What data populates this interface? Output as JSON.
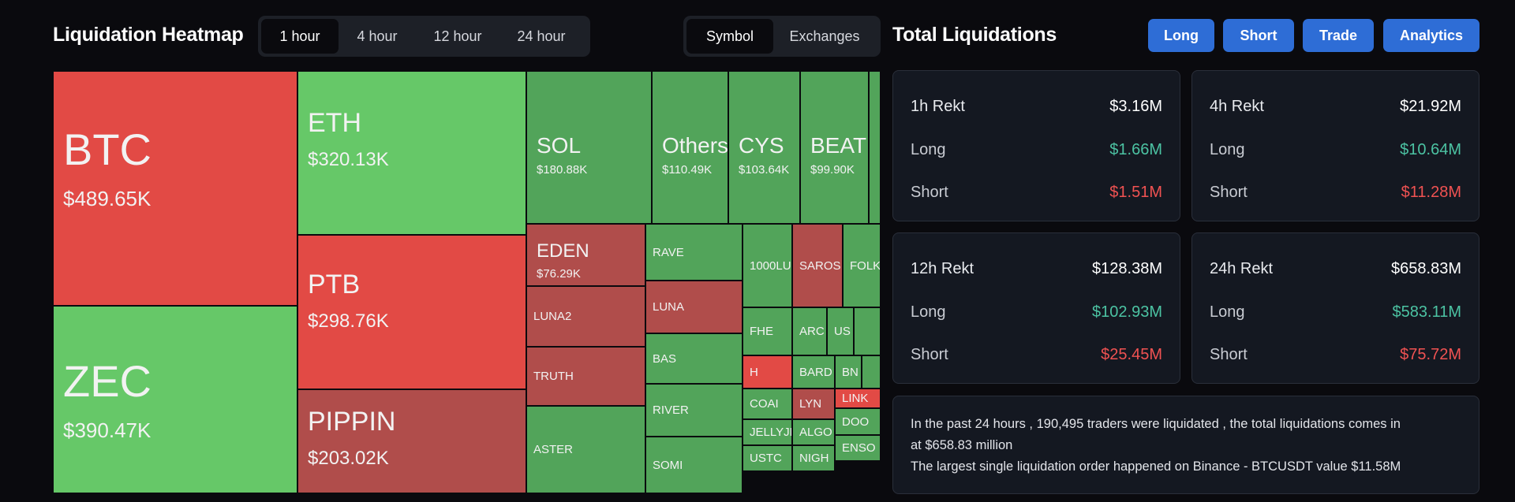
{
  "heatmap": {
    "title": "Liquidation Heatmap",
    "timeframes": [
      "1 hour",
      "4 hour",
      "12 hour",
      "24 hour"
    ],
    "active_timeframe": "1 hour",
    "view_modes": [
      "Symbol",
      "Exchanges"
    ],
    "active_view": "Symbol",
    "colors": {
      "green": "#66c868",
      "mid_green": "#52a45a",
      "red": "#e24a45",
      "dark_red": "#b04d4b",
      "background": "#0a0a0e"
    },
    "tiles": [
      {
        "sym": "BTC",
        "value": "$489.65K",
        "color": "#e24a45",
        "size": "xl"
      },
      {
        "sym": "ZEC",
        "value": "$390.47K",
        "color": "#66c868",
        "size": "xl"
      },
      {
        "sym": "ETH",
        "value": "$320.13K",
        "color": "#66c868",
        "size": "lg"
      },
      {
        "sym": "PTB",
        "value": "$298.76K",
        "color": "#e24a45",
        "size": "lg"
      },
      {
        "sym": "PIPPIN",
        "value": "$203.02K",
        "color": "#b04d4b",
        "size": "lg"
      },
      {
        "sym": "SOL",
        "value": "$180.88K",
        "color": "#52a45a",
        "size": "md"
      },
      {
        "sym": "Others",
        "value": "$110.49K",
        "color": "#52a45a",
        "size": "md"
      },
      {
        "sym": "CYS",
        "value": "$103.64K",
        "color": "#52a45a",
        "size": "md"
      },
      {
        "sym": "BEAT",
        "value": "$99.90K",
        "color": "#52a45a",
        "size": "md"
      },
      {
        "sym": "",
        "value": "",
        "color": "#52a45a",
        "size": "sm"
      },
      {
        "sym": "EDEN",
        "value": "$76.29K",
        "color": "#b04d4b",
        "size": "sm"
      },
      {
        "sym": "LUNA2",
        "value": "",
        "color": "#b04d4b",
        "size": "xs"
      },
      {
        "sym": "TRUTH",
        "value": "",
        "color": "#b04d4b",
        "size": "xs"
      },
      {
        "sym": "ASTER",
        "value": "",
        "color": "#52a45a",
        "size": "xs"
      },
      {
        "sym": "RAVE",
        "value": "",
        "color": "#52a45a",
        "size": "xs"
      },
      {
        "sym": "LUNA",
        "value": "",
        "color": "#b04d4b",
        "size": "xs"
      },
      {
        "sym": "BAS",
        "value": "",
        "color": "#52a45a",
        "size": "xs"
      },
      {
        "sym": "RIVER",
        "value": "",
        "color": "#52a45a",
        "size": "xs"
      },
      {
        "sym": "SOMI",
        "value": "",
        "color": "#52a45a",
        "size": "xs"
      },
      {
        "sym": "1000LU",
        "value": "",
        "color": "#52a45a",
        "size": "xs"
      },
      {
        "sym": "SAROS",
        "value": "",
        "color": "#b04d4b",
        "size": "xs"
      },
      {
        "sym": "FOLK",
        "value": "",
        "color": "#52a45a",
        "size": "xs"
      },
      {
        "sym": "FHE",
        "value": "",
        "color": "#52a45a",
        "size": "xs"
      },
      {
        "sym": "ARC",
        "value": "",
        "color": "#52a45a",
        "size": "xs"
      },
      {
        "sym": "US",
        "value": "",
        "color": "#52a45a",
        "size": "xs"
      },
      {
        "sym": "",
        "value": "",
        "color": "#52a45a",
        "size": "xs"
      },
      {
        "sym": "H",
        "value": "",
        "color": "#e24a45",
        "size": "xs"
      },
      {
        "sym": "BARD",
        "value": "",
        "color": "#52a45a",
        "size": "xs"
      },
      {
        "sym": "BN",
        "value": "",
        "color": "#52a45a",
        "size": "xs"
      },
      {
        "sym": "",
        "value": "",
        "color": "#52a45a",
        "size": "xs"
      },
      {
        "sym": "COAI",
        "value": "",
        "color": "#52a45a",
        "size": "xs"
      },
      {
        "sym": "LYN",
        "value": "",
        "color": "#b04d4b",
        "size": "xs"
      },
      {
        "sym": "LINK",
        "value": "",
        "color": "#e24a45",
        "size": "xs"
      },
      {
        "sym": "JELLYJE",
        "value": "",
        "color": "#52a45a",
        "size": "xs"
      },
      {
        "sym": "ALGO",
        "value": "",
        "color": "#52a45a",
        "size": "xs"
      },
      {
        "sym": "DOO",
        "value": "",
        "color": "#52a45a",
        "size": "xs"
      },
      {
        "sym": "USTC",
        "value": "",
        "color": "#52a45a",
        "size": "xs"
      },
      {
        "sym": "NIGH",
        "value": "",
        "color": "#52a45a",
        "size": "xs"
      },
      {
        "sym": "ENSO",
        "value": "",
        "color": "#52a45a",
        "size": "xs"
      }
    ]
  },
  "totals": {
    "title": "Total Liquidations",
    "buttons": [
      "Long",
      "Short",
      "Trade",
      "Analytics"
    ],
    "cards": [
      {
        "period": "1h Rekt",
        "total": "$3.16M",
        "long_label": "Long",
        "long": "$1.66M",
        "short_label": "Short",
        "short": "$1.51M"
      },
      {
        "period": "4h Rekt",
        "total": "$21.92M",
        "long_label": "Long",
        "long": "$10.64M",
        "short_label": "Short",
        "short": "$11.28M"
      },
      {
        "period": "12h Rekt",
        "total": "$128.38M",
        "long_label": "Long",
        "long": "$102.93M",
        "short_label": "Short",
        "short": "$25.45M"
      },
      {
        "period": "24h Rekt",
        "total": "$658.83M",
        "long_label": "Long",
        "long": "$583.11M",
        "short_label": "Short",
        "short": "$75.72M"
      }
    ],
    "summary_line1": "In the past 24 hours , 190,495 traders were liquidated , the total liquidations comes in",
    "summary_line2": "at $658.83 million",
    "summary_line3": "The largest single liquidation order happened on Binance - BTCUSDT value $11.58M"
  }
}
